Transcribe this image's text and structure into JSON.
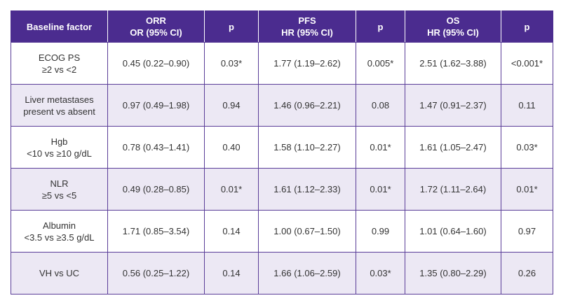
{
  "table": {
    "header": [
      [
        "Baseline factor"
      ],
      [
        "ORR",
        "OR (95% CI)"
      ],
      [
        "p"
      ],
      [
        "PFS",
        "HR (95% CI)"
      ],
      [
        "p"
      ],
      [
        "OS",
        "HR (95% CI)"
      ],
      [
        "p"
      ]
    ],
    "rows": [
      [
        [
          "ECOG PS",
          "≥2 vs <2"
        ],
        "0.45 (0.22–0.90)",
        "0.03*",
        "1.77 (1.19–2.62)",
        "0.005*",
        "2.51 (1.62–3.88)",
        "<0.001*"
      ],
      [
        [
          "Liver metastases",
          "present vs absent"
        ],
        "0.97 (0.49–1.98)",
        "0.94",
        "1.46 (0.96–2.21)",
        "0.08",
        "1.47 (0.91–2.37)",
        "0.11"
      ],
      [
        [
          "Hgb",
          "<10 vs ≥10 g/dL"
        ],
        "0.78 (0.43–1.41)",
        "0.40",
        "1.58 (1.10–2.27)",
        "0.01*",
        "1.61 (1.05–2.47)",
        "0.03*"
      ],
      [
        [
          "NLR",
          "≥5 vs <5"
        ],
        "0.49 (0.28–0.85)",
        "0.01*",
        "1.61 (1.12–2.33)",
        "0.01*",
        "1.72 (1.11–2.64)",
        "0.01*"
      ],
      [
        [
          "Albumin",
          "<3.5 vs ≥3.5 g/dL"
        ],
        "1.71 (0.85–3.54)",
        "0.14",
        "1.00 (0.67–1.50)",
        "0.99",
        "1.01 (0.64–1.60)",
        "0.97"
      ],
      [
        [
          "VH vs UC"
        ],
        "0.56 (0.25–1.22)",
        "0.14",
        "1.66 (1.06–2.59)",
        "0.03*",
        "1.35 (0.80–2.29)",
        "0.26"
      ]
    ]
  }
}
